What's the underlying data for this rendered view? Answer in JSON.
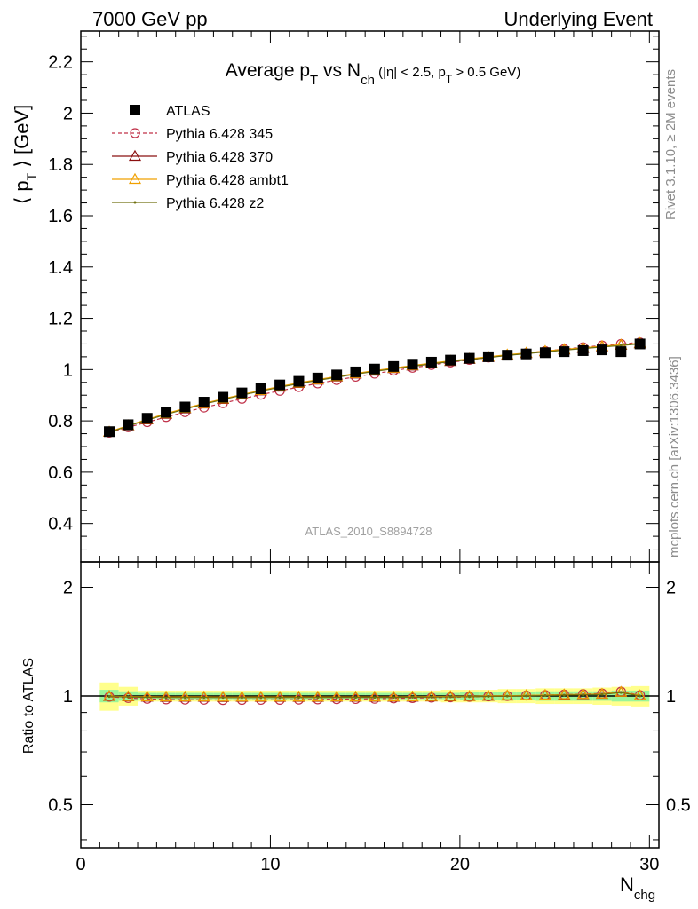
{
  "header": {
    "left": "7000 GeV pp",
    "right": "Underlying Event"
  },
  "title": {
    "main": "Average p",
    "main_sub": "T",
    "vs": " vs N",
    "vs_sub": "ch",
    "cuts": " (|η| < 2.5, p",
    "cuts_sub": "T",
    "cuts_end": " > 0.5 GeV)"
  },
  "side_labels": {
    "rivet": "Rivet 3.1.10, ≥ 2M events",
    "mcplots": "mcplots.cern.ch [arXiv:1306.3436]"
  },
  "watermark": "ATLAS_2010_S8894728",
  "axes": {
    "ylabel_main": "⟨ p",
    "ylabel_main_sub": "T",
    "ylabel_main_end": " ⟩ [GeV]",
    "ylabel_ratio": "Ratio to ATLAS",
    "xlabel": "N",
    "xlabel_sub": "chg"
  },
  "legend": [
    {
      "label": "ATLAS",
      "color": "#000000",
      "marker": "square",
      "line": "none"
    },
    {
      "label": "Pythia 6.428 345",
      "color": "#c03048",
      "marker": "circle-open",
      "line": "dashed"
    },
    {
      "label": "Pythia 6.428 370",
      "color": "#8b1010",
      "marker": "triangle-open",
      "line": "solid"
    },
    {
      "label": "Pythia 6.428 ambt1",
      "color": "#f0a000",
      "marker": "triangle-open",
      "line": "solid"
    },
    {
      "label": "Pythia 6.428 z2",
      "color": "#707010",
      "marker": "dot",
      "line": "solid"
    }
  ],
  "chart_data": {
    "type": "scatter",
    "xlim": [
      0,
      30.5
    ],
    "ylim_main": [
      0.25,
      2.32
    ],
    "ylim_ratio": [
      0.38,
      2.35
    ],
    "x_ticks": [
      "0",
      "10",
      "20",
      "30"
    ],
    "y_ticks_main": [
      "0.4",
      "0.6",
      "0.8",
      "1",
      "1.2",
      "1.4",
      "1.6",
      "1.8",
      "2",
      "2.2"
    ],
    "y_ticks_ratio": [
      "0.5",
      "1",
      "2"
    ],
    "x": [
      1.5,
      2.5,
      3.5,
      4.5,
      5.5,
      6.5,
      7.5,
      8.5,
      9.5,
      10.5,
      11.5,
      12.5,
      13.5,
      14.5,
      15.5,
      16.5,
      17.5,
      18.5,
      19.5,
      20.5,
      21.5,
      22.5,
      23.5,
      24.5,
      25.5,
      26.5,
      27.5,
      28.5,
      29.5
    ],
    "series": [
      {
        "name": "ATLAS",
        "values": [
          0.758,
          0.785,
          0.81,
          0.833,
          0.854,
          0.873,
          0.892,
          0.909,
          0.925,
          0.94,
          0.954,
          0.967,
          0.979,
          0.991,
          1.002,
          1.012,
          1.021,
          1.029,
          1.037,
          1.044,
          1.05,
          1.056,
          1.061,
          1.066,
          1.07,
          1.074,
          1.077,
          1.07,
          1.1
        ]
      },
      {
        "name": "Pythia 6.428 345",
        "values": [
          0.754,
          0.775,
          0.795,
          0.815,
          0.834,
          0.852,
          0.869,
          0.886,
          0.902,
          0.917,
          0.932,
          0.946,
          0.959,
          0.972,
          0.984,
          0.996,
          1.007,
          1.018,
          1.028,
          1.038,
          1.047,
          1.056,
          1.064,
          1.072,
          1.08,
          1.087,
          1.094,
          1.1,
          1.106
        ]
      },
      {
        "name": "Pythia 6.428 370",
        "values": [
          0.756,
          0.781,
          0.804,
          0.826,
          0.847,
          0.866,
          0.884,
          0.901,
          0.917,
          0.932,
          0.946,
          0.959,
          0.971,
          0.983,
          0.994,
          1.004,
          1.014,
          1.023,
          1.032,
          1.04,
          1.048,
          1.056,
          1.063,
          1.07,
          1.077,
          1.083,
          1.089,
          1.095,
          1.101
        ]
      },
      {
        "name": "Pythia 6.428 ambt1",
        "values": [
          0.757,
          0.782,
          0.806,
          0.828,
          0.849,
          0.868,
          0.886,
          0.903,
          0.919,
          0.934,
          0.948,
          0.961,
          0.973,
          0.985,
          0.996,
          1.006,
          1.016,
          1.025,
          1.034,
          1.042,
          1.05,
          1.058,
          1.065,
          1.072,
          1.079,
          1.085,
          1.091,
          1.097,
          1.103
        ]
      },
      {
        "name": "Pythia 6.428 z2",
        "values": [
          0.755,
          0.78,
          0.803,
          0.825,
          0.846,
          0.865,
          0.883,
          0.9,
          0.916,
          0.931,
          0.945,
          0.958,
          0.97,
          0.982,
          0.993,
          1.003,
          1.013,
          1.022,
          1.031,
          1.039,
          1.047,
          1.055,
          1.062,
          1.069,
          1.076,
          1.082,
          1.088,
          1.094,
          1.1
        ]
      }
    ],
    "ratio_band_inner": [
      0.04,
      0.03,
      0.02,
      0.02,
      0.02,
      0.02,
      0.02,
      0.02,
      0.02,
      0.02,
      0.02,
      0.02,
      0.02,
      0.02,
      0.02,
      0.02,
      0.02,
      0.02,
      0.02,
      0.025,
      0.025,
      0.025,
      0.025,
      0.03,
      0.03,
      0.03,
      0.03,
      0.035,
      0.035
    ],
    "ratio_band_outer": [
      0.09,
      0.06,
      0.035,
      0.035,
      0.035,
      0.035,
      0.035,
      0.035,
      0.035,
      0.035,
      0.035,
      0.035,
      0.035,
      0.035,
      0.035,
      0.035,
      0.035,
      0.035,
      0.04,
      0.04,
      0.04,
      0.045,
      0.045,
      0.05,
      0.05,
      0.05,
      0.055,
      0.06,
      0.065
    ],
    "legend_position": "top-left"
  }
}
